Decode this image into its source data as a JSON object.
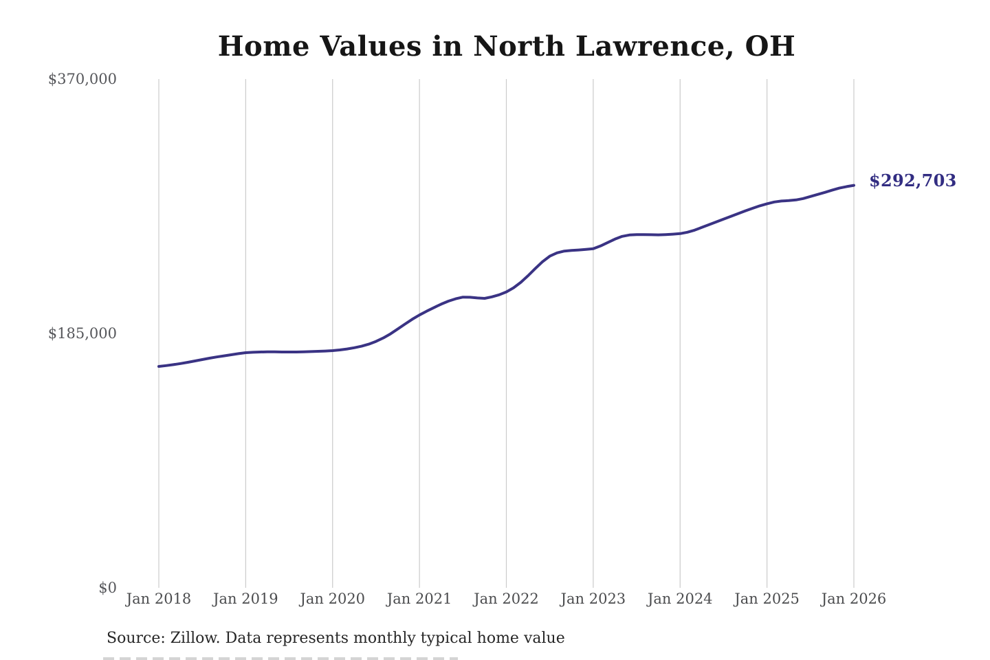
{
  "title": "Home Values in North Lawrence, OH",
  "source_note": "Source: Zillow. Data represents monthly typical home value",
  "end_label": "$292,703",
  "colors": {
    "background": "#ffffff",
    "line": "#3a3384",
    "end_label_text": "#322d82",
    "gridline": "#cbcbcb",
    "x_tick_text": "#4b4c4e",
    "y_tick_text": "#55565a",
    "title_text": "#161616",
    "source_text": "#262626"
  },
  "chart_data": {
    "type": "line",
    "title": "Home Values in North Lawrence, OH",
    "xlabel": "",
    "ylabel": "",
    "ylim": [
      0,
      370000
    ],
    "y_ticks": [
      0,
      185000,
      370000
    ],
    "y_tick_labels": [
      "$0",
      "$185,000",
      "$370,000"
    ],
    "x_tick_labels": [
      "Jan 2018",
      "Jan 2019",
      "Jan 2020",
      "Jan 2021",
      "Jan 2022",
      "Jan 2023",
      "Jan 2024",
      "Jan 2025",
      "Jan 2026"
    ],
    "x_start": "2018-01",
    "x_interval": "monthly",
    "grid": "vertical-only",
    "legend": "none",
    "last_value": 292703,
    "last_value_label": "$292,703",
    "series": [
      {
        "name": "Monthly typical home value",
        "values": [
          161000,
          161600,
          162300,
          163100,
          164000,
          165000,
          166000,
          167000,
          167900,
          168700,
          169500,
          170300,
          171000,
          171300,
          171500,
          171600,
          171600,
          171500,
          171500,
          171500,
          171600,
          171800,
          172000,
          172200,
          172500,
          173000,
          173700,
          174600,
          175700,
          177200,
          179200,
          181700,
          184700,
          188200,
          191800,
          195300,
          198400,
          201200,
          203800,
          206300,
          208500,
          210200,
          211400,
          211300,
          210800,
          210500,
          211600,
          213100,
          215200,
          218200,
          222200,
          227000,
          232200,
          237200,
          241200,
          243600,
          244900,
          245400,
          245700,
          246100,
          246600,
          248600,
          251100,
          253600,
          255600,
          256600,
          256900,
          256900,
          256800,
          256700,
          256900,
          257200,
          257600,
          258600,
          260100,
          262100,
          264100,
          266100,
          268100,
          270100,
          272100,
          274100,
          276000,
          277800,
          279300,
          280600,
          281300,
          281600,
          282100,
          283100,
          284600,
          286100,
          287600,
          289200,
          290700,
          291800,
          292703
        ]
      }
    ]
  }
}
